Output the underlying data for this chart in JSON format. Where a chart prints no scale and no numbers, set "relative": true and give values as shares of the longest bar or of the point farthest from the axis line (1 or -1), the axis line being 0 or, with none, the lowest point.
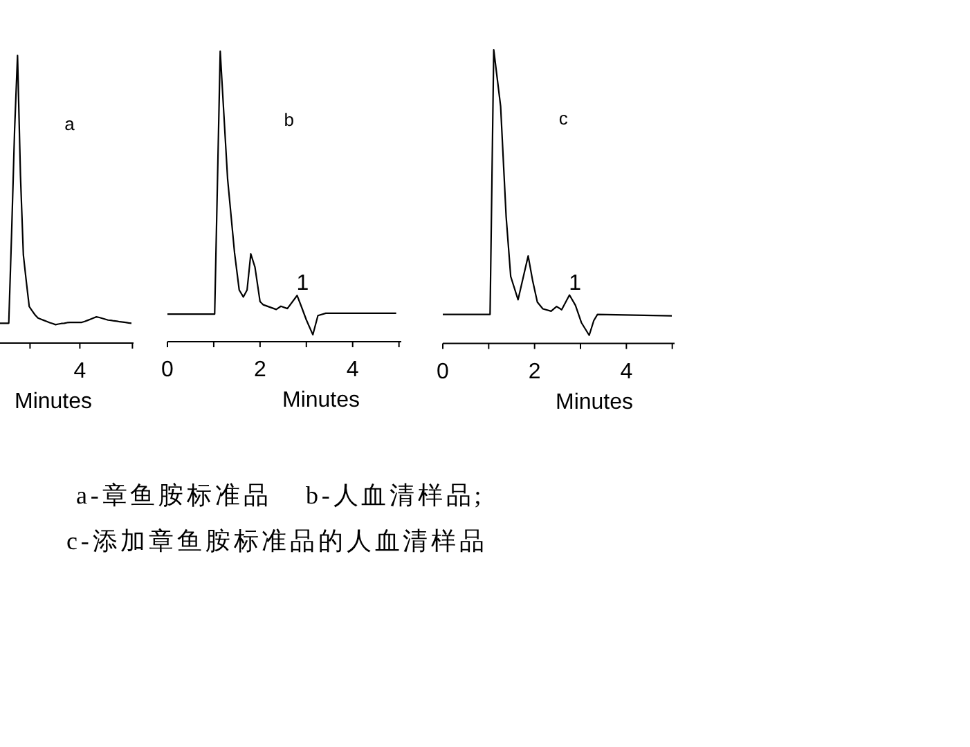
{
  "chart_data": [
    {
      "type": "line",
      "title": "a",
      "xlabel": "Minutes",
      "relative": true,
      "categories": [
        null,
        null,
        null,
        null,
        null,
        null,
        null,
        null,
        null,
        null,
        null,
        null,
        null,
        null,
        null,
        null,
        null,
        null,
        null,
        null,
        null,
        null,
        null,
        null,
        null,
        null,
        null,
        null,
        null,
        null,
        null,
        null,
        null,
        null,
        null,
        null,
        null,
        null,
        null,
        null,
        null,
        null,
        null,
        null,
        null,
        null
      ],
      "series": [
        {
          "color": "#000000",
          "values": [
            0.069,
            0.069,
            0.069,
            0.069,
            0.39,
            0.742,
            1,
            0.584,
            0.306,
            0.214,
            0.127,
            0.112,
            0.098,
            0.087,
            0.083,
            0.079,
            0.075,
            0.071,
            0.068,
            0.064,
            0.066,
            0.068,
            0.069,
            0.071,
            0.072,
            0.072,
            0.072,
            0.072,
            0.072,
            0.075,
            0.079,
            0.083,
            0.087,
            0.091,
            0.089,
            0.086,
            0.083,
            0.08,
            0.079,
            0.077,
            0.076,
            0.074,
            0.073,
            0.072,
            0.07,
            0.069
          ]
        }
      ],
      "annotations": [
        "4",
        "a-章鱼胺标准品",
        "b-人血清样品;",
        "c-添加章鱼胺标准品的人血清样品"
      ]
    },
    {
      "type": "line",
      "title": "b",
      "xlabel": "Minutes",
      "relative": true,
      "xlim": [
        0,
        5.05
      ],
      "xticks": [
        0,
        {
          "value": 1,
          "label": null
        },
        2,
        {
          "value": 3,
          "label": null
        },
        4,
        {
          "value": 5,
          "label": null
        }
      ],
      "series": [
        {
          "color": "#000000",
          "x": [
            0,
            1.02,
            1.14,
            1.3,
            1.45,
            1.55,
            1.64,
            1.72,
            1.8,
            1.89,
            2.0,
            2.07,
            2.35,
            2.45,
            2.59,
            2.8,
            2.89,
            3.0,
            3.14,
            3.25,
            3.42,
            4.94
          ],
          "values": [
            0.095,
            0.095,
            1,
            0.559,
            0.305,
            0.178,
            0.154,
            0.178,
            0.302,
            0.257,
            0.138,
            0.127,
            0.111,
            0.122,
            0.114,
            0.159,
            0.122,
            0.075,
            0.024,
            0.09,
            0.098,
            0.098
          ]
        }
      ],
      "annotations": [
        {
          "text": "1",
          "x": 2.8,
          "y": 0.159
        }
      ]
    },
    {
      "type": "line",
      "title": "c",
      "xlabel": "Minutes",
      "relative": true,
      "xlim": [
        0,
        5.05
      ],
      "xticks": [
        0,
        {
          "value": 1,
          "label": null
        },
        2,
        {
          "value": 3,
          "label": null
        },
        4,
        {
          "value": 5,
          "label": null
        }
      ],
      "series": [
        {
          "color": "#000000",
          "x": [
            0,
            1.03,
            1.11,
            1.26,
            1.38,
            1.48,
            1.64,
            1.86,
            1.96,
            2.06,
            2.18,
            2.36,
            2.48,
            2.59,
            2.76,
            2.89,
            3.02,
            3.19,
            3.29,
            3.37,
            4.99
          ],
          "values": [
            0.099,
            0.099,
            1,
            0.808,
            0.432,
            0.228,
            0.149,
            0.298,
            0.212,
            0.141,
            0.118,
            0.11,
            0.126,
            0.115,
            0.165,
            0.13,
            0.071,
            0.028,
            0.078,
            0.099,
            0.094
          ]
        }
      ],
      "annotations": [
        {
          "text": "1",
          "x": 2.76,
          "y": 0.165
        }
      ]
    }
  ]
}
